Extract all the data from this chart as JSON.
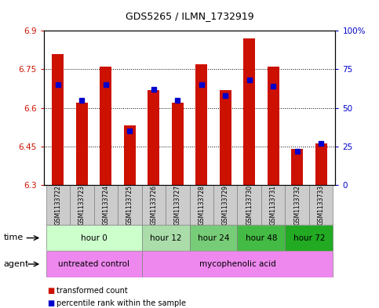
{
  "title": "GDS5265 / ILMN_1732919",
  "samples": [
    "GSM1133722",
    "GSM1133723",
    "GSM1133724",
    "GSM1133725",
    "GSM1133726",
    "GSM1133727",
    "GSM1133728",
    "GSM1133729",
    "GSM1133730",
    "GSM1133731",
    "GSM1133732",
    "GSM1133733"
  ],
  "transformed_counts": [
    6.81,
    6.62,
    6.76,
    6.53,
    6.67,
    6.62,
    6.77,
    6.67,
    6.87,
    6.76,
    6.44,
    6.46
  ],
  "percentile_ranks": [
    65,
    55,
    65,
    35,
    62,
    55,
    65,
    58,
    68,
    64,
    22,
    27
  ],
  "bar_bottom": 6.3,
  "ylim_left": [
    6.3,
    6.9
  ],
  "ylim_right": [
    0,
    100
  ],
  "yticks_left": [
    6.3,
    6.45,
    6.6,
    6.75,
    6.9
  ],
  "ytick_labels_left": [
    "6.3",
    "6.45",
    "6.6",
    "6.75",
    "6.9"
  ],
  "yticks_right": [
    0,
    25,
    50,
    75,
    100
  ],
  "ytick_labels_right": [
    "0",
    "25",
    "50",
    "75",
    "100%"
  ],
  "grid_lines": [
    6.45,
    6.6,
    6.75
  ],
  "bar_color": "#cc1100",
  "percentile_color": "#0000cc",
  "time_groups": [
    {
      "label": "hour 0",
      "start": 0,
      "end": 3,
      "color": "#ccffcc"
    },
    {
      "label": "hour 12",
      "start": 4,
      "end": 5,
      "color": "#aaddaa"
    },
    {
      "label": "hour 24",
      "start": 6,
      "end": 7,
      "color": "#77cc77"
    },
    {
      "label": "hour 48",
      "start": 8,
      "end": 9,
      "color": "#44bb44"
    },
    {
      "label": "hour 72",
      "start": 10,
      "end": 11,
      "color": "#22aa22"
    }
  ],
  "agent_groups": [
    {
      "label": "untreated control",
      "start": 0,
      "end": 3,
      "color": "#ee88ee"
    },
    {
      "label": "mycophenolic acid",
      "start": 4,
      "end": 11,
      "color": "#ee88ee"
    }
  ],
  "legend_items": [
    {
      "label": "transformed count",
      "color": "#cc1100"
    },
    {
      "label": "percentile rank within the sample",
      "color": "#0000cc"
    }
  ],
  "sample_bg": "#cccccc",
  "title_fontsize": 9,
  "bar_width": 0.5,
  "marker_size": 4
}
